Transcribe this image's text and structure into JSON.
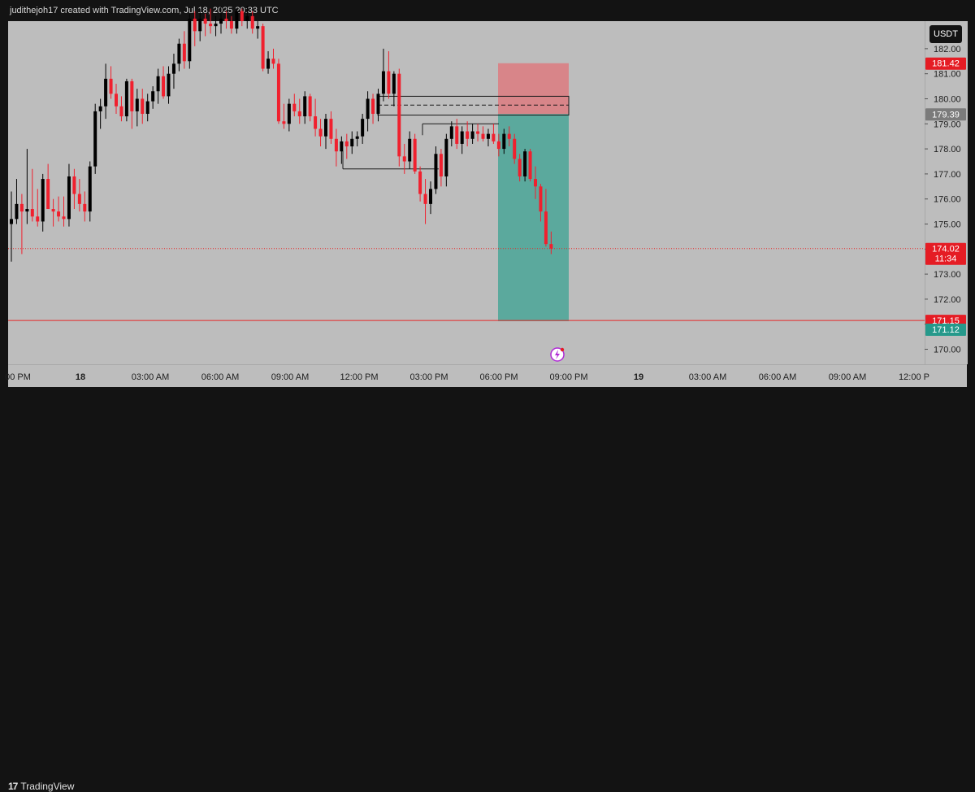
{
  "header": {
    "credit": "judithejoh17 created with TradingView.com, Jul 18, 2025 20:33 UTC"
  },
  "toolbar": {
    "currency": "USDT"
  },
  "footer": {
    "logo_text": "TradingView",
    "logo_mark": "17"
  },
  "colors": {
    "background": "#bdbdbd",
    "frame": "#131313",
    "bull": "#000000",
    "bear": "#f0202e",
    "stop_zone": "#d88589",
    "target_zone": "#5ba99d",
    "price_line": "#e52a2a"
  },
  "chart_data": {
    "type": "candlestick",
    "title": "",
    "ylabel": "",
    "xlabel": "",
    "ylim": [
      169.4,
      183.1
    ],
    "grid": false,
    "y_ticks": [
      "182.00",
      "181.00",
      "180.00",
      "179.00",
      "178.00",
      "177.00",
      "176.00",
      "175.00",
      "174.00",
      "173.00",
      "172.00",
      "171.00",
      "170.00"
    ],
    "x_ticks": [
      "00 PM",
      "18",
      "03:00 AM",
      "06:00 AM",
      "09:00 AM",
      "12:00 PM",
      "03:00 PM",
      "06:00 PM",
      "09:00 PM",
      "19",
      "03:00 AM",
      "06:00 AM",
      "09:00 AM",
      "12:00 P"
    ],
    "candles": [
      [
        175.0,
        176.3,
        173.5,
        175.2
      ],
      [
        175.2,
        176.8,
        175.0,
        175.8
      ],
      [
        175.8,
        176.2,
        173.8,
        175.5
      ],
      [
        175.5,
        178.0,
        175.0,
        175.6
      ],
      [
        175.6,
        177.2,
        175.1,
        175.3
      ],
      [
        175.3,
        176.4,
        174.9,
        175.1
      ],
      [
        175.1,
        177.0,
        174.7,
        176.8
      ],
      [
        176.8,
        177.4,
        175.6,
        175.6
      ],
      [
        175.6,
        176.0,
        174.9,
        175.5
      ],
      [
        175.5,
        176.1,
        175.1,
        175.3
      ],
      [
        175.3,
        176.1,
        174.9,
        175.2
      ],
      [
        175.2,
        177.4,
        174.9,
        176.9
      ],
      [
        176.9,
        177.2,
        175.6,
        176.2
      ],
      [
        176.2,
        176.8,
        175.5,
        175.8
      ],
      [
        175.8,
        176.3,
        175.1,
        175.5
      ],
      [
        175.5,
        177.5,
        175.1,
        177.3
      ],
      [
        177.3,
        179.8,
        177.0,
        179.5
      ],
      [
        179.5,
        180.0,
        178.8,
        179.7
      ],
      [
        179.7,
        181.4,
        179.2,
        180.8
      ],
      [
        180.8,
        181.3,
        180.0,
        180.2
      ],
      [
        180.2,
        180.6,
        179.4,
        179.7
      ],
      [
        179.7,
        180.1,
        179.1,
        179.3
      ],
      [
        179.3,
        180.8,
        179.1,
        180.7
      ],
      [
        180.7,
        180.8,
        178.8,
        179.5
      ],
      [
        179.5,
        180.4,
        178.9,
        180.0
      ],
      [
        180.0,
        180.4,
        179.0,
        179.4
      ],
      [
        179.4,
        180.2,
        179.1,
        179.9
      ],
      [
        179.9,
        180.5,
        179.6,
        180.3
      ],
      [
        180.3,
        181.2,
        179.8,
        180.9
      ],
      [
        180.9,
        181.3,
        180.0,
        180.1
      ],
      [
        180.1,
        181.3,
        179.8,
        181.0
      ],
      [
        181.0,
        181.8,
        180.4,
        181.4
      ],
      [
        181.4,
        182.4,
        181.1,
        182.2
      ],
      [
        182.2,
        182.7,
        181.2,
        181.5
      ],
      [
        181.5,
        183.4,
        181.2,
        183.2
      ],
      [
        183.2,
        183.5,
        182.1,
        182.7
      ],
      [
        182.7,
        183.6,
        182.3,
        183.2
      ],
      [
        183.2,
        183.4,
        182.5,
        183.0
      ],
      [
        183.0,
        183.6,
        182.6,
        182.9
      ],
      [
        182.9,
        183.3,
        182.5,
        183.0
      ],
      [
        183.0,
        183.7,
        182.6,
        183.2
      ],
      [
        183.2,
        183.5,
        182.8,
        183.1
      ],
      [
        183.1,
        183.3,
        182.6,
        182.8
      ],
      [
        182.8,
        183.6,
        182.6,
        183.5
      ],
      [
        183.5,
        183.6,
        182.9,
        183.1
      ],
      [
        183.1,
        183.7,
        182.8,
        183.3
      ],
      [
        183.3,
        183.5,
        182.6,
        182.8
      ],
      [
        182.8,
        183.1,
        182.4,
        182.9
      ],
      [
        182.9,
        183.0,
        181.1,
        181.2
      ],
      [
        181.2,
        181.9,
        181.0,
        181.6
      ],
      [
        181.6,
        182.0,
        181.2,
        181.4
      ],
      [
        181.4,
        181.6,
        179.0,
        179.1
      ],
      [
        179.1,
        179.8,
        178.8,
        179.0
      ],
      [
        179.0,
        180.0,
        178.7,
        179.8
      ],
      [
        179.8,
        180.2,
        179.3,
        179.5
      ],
      [
        179.5,
        180.0,
        179.0,
        179.3
      ],
      [
        179.3,
        180.3,
        179.0,
        180.1
      ],
      [
        180.1,
        180.2,
        179.1,
        179.3
      ],
      [
        179.3,
        180.0,
        178.5,
        178.8
      ],
      [
        178.8,
        179.2,
        178.1,
        178.5
      ],
      [
        178.5,
        179.4,
        178.0,
        179.2
      ],
      [
        179.2,
        179.5,
        178.2,
        178.4
      ],
      [
        178.4,
        178.8,
        177.3,
        177.9
      ],
      [
        177.9,
        178.5,
        177.4,
        178.3
      ],
      [
        178.3,
        178.6,
        177.6,
        178.1
      ],
      [
        178.1,
        178.7,
        177.8,
        178.4
      ],
      [
        178.4,
        178.7,
        178.1,
        178.5
      ],
      [
        178.5,
        179.4,
        178.2,
        179.2
      ],
      [
        179.2,
        180.3,
        178.7,
        180.0
      ],
      [
        180.0,
        180.2,
        179.0,
        179.4
      ],
      [
        179.4,
        180.4,
        179.1,
        180.2
      ],
      [
        180.2,
        182.0,
        179.9,
        181.1
      ],
      [
        181.1,
        181.9,
        180.0,
        180.2
      ],
      [
        180.2,
        181.1,
        179.7,
        181.0
      ],
      [
        181.0,
        181.2,
        177.3,
        177.7
      ],
      [
        177.7,
        178.2,
        177.0,
        177.5
      ],
      [
        177.5,
        178.7,
        177.2,
        178.4
      ],
      [
        178.4,
        178.6,
        177.0,
        177.1
      ],
      [
        177.1,
        177.3,
        175.9,
        176.2
      ],
      [
        176.2,
        176.8,
        175.0,
        175.8
      ],
      [
        175.8,
        176.7,
        175.4,
        176.4
      ],
      [
        176.4,
        178.1,
        176.2,
        177.8
      ],
      [
        177.8,
        178.0,
        176.5,
        176.9
      ],
      [
        176.9,
        178.6,
        176.5,
        178.4
      ],
      [
        178.4,
        179.1,
        178.1,
        178.9
      ],
      [
        178.9,
        179.2,
        178.0,
        178.2
      ],
      [
        178.2,
        178.9,
        177.8,
        178.7
      ],
      [
        178.7,
        179.1,
        178.1,
        178.4
      ],
      [
        178.4,
        179.0,
        178.2,
        178.7
      ],
      [
        178.7,
        179.0,
        178.3,
        178.6
      ],
      [
        178.6,
        178.9,
        178.3,
        178.4
      ],
      [
        178.4,
        178.8,
        178.1,
        178.6
      ],
      [
        178.6,
        179.0,
        178.2,
        178.3
      ],
      [
        178.3,
        178.6,
        177.7,
        178.0
      ],
      [
        178.0,
        178.8,
        177.8,
        178.6
      ],
      [
        178.6,
        178.9,
        178.1,
        178.4
      ],
      [
        178.4,
        178.6,
        177.4,
        177.6
      ],
      [
        177.6,
        177.8,
        176.7,
        176.9
      ],
      [
        176.9,
        178.0,
        176.7,
        177.9
      ],
      [
        177.9,
        178.0,
        176.7,
        176.8
      ],
      [
        176.8,
        177.3,
        176.0,
        176.5
      ],
      [
        176.5,
        176.6,
        175.1,
        175.5
      ],
      [
        175.5,
        176.4,
        174.1,
        174.2
      ],
      [
        174.2,
        174.7,
        173.8,
        174.02
      ]
    ],
    "current_price": "174.02",
    "countdown": "11:34",
    "price_tags": {
      "stop": "181.42",
      "entry": "179.39",
      "tp_line": "171.15",
      "target": "171.12"
    },
    "position": {
      "stop": 181.42,
      "entry": 179.39,
      "target": 171.12
    },
    "levels": {
      "support_line": 171.15,
      "current_line": 174.02,
      "zone_top": 180.1,
      "zone_bottom": 179.35,
      "zone_mid": 179.75,
      "resistance_line": 179.0,
      "low_line": 177.2
    }
  }
}
